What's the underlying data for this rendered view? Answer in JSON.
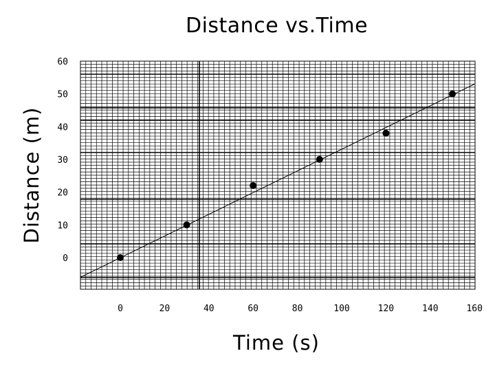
{
  "chart_data": {
    "type": "scatter",
    "title": "Distance vs.Time",
    "xlabel": "Time (s)",
    "ylabel": "Distance (m)",
    "xlim": [
      -18,
      160
    ],
    "ylim": [
      -9,
      60
    ],
    "x_ticks": [
      0,
      20,
      40,
      60,
      80,
      100,
      120,
      140,
      160
    ],
    "y_ticks": [
      0,
      10,
      20,
      30,
      40,
      50,
      60
    ],
    "grid": true,
    "legend": "none",
    "series": [
      {
        "points": [
          {
            "x": 0,
            "y": 0
          },
          {
            "x": 30,
            "y": 10
          },
          {
            "x": 60,
            "y": 22
          },
          {
            "x": 90,
            "y": 30
          },
          {
            "x": 120,
            "y": 38
          },
          {
            "x": 150,
            "y": 50
          }
        ]
      }
    ],
    "trendline": {
      "from": {
        "x": -18,
        "y": -6
      },
      "to": {
        "x": 160,
        "y": 53
      }
    },
    "colors": {
      "axis": "#000000",
      "grid": "#000000",
      "points": "#000000"
    }
  }
}
